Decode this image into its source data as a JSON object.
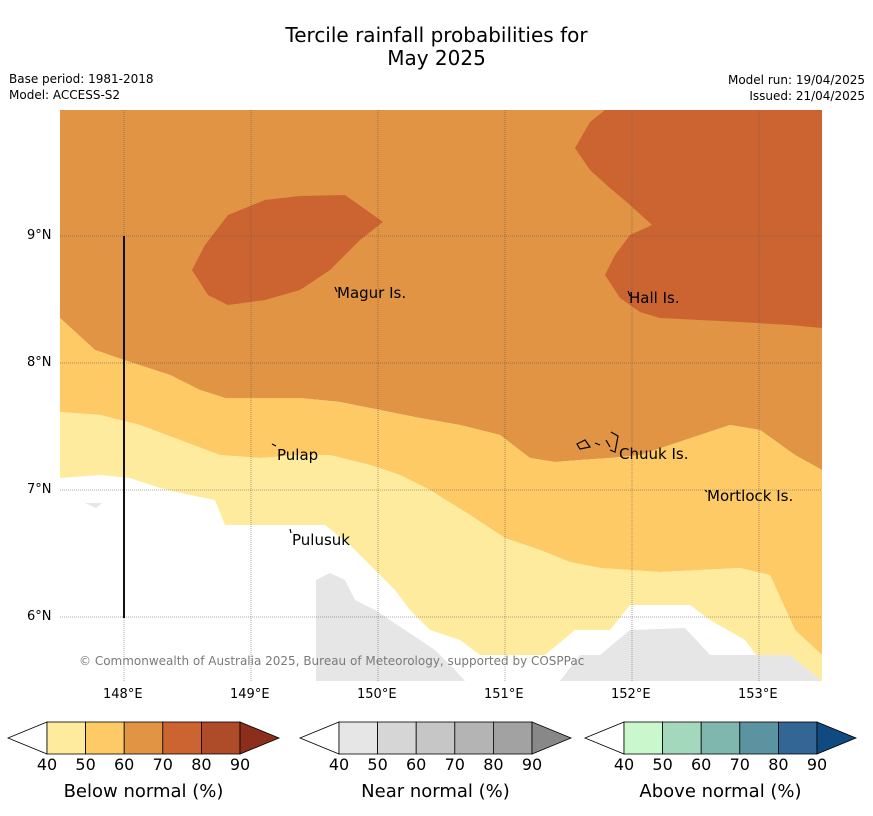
{
  "title": {
    "line1": "Tercile rainfall probabilities for",
    "line2": "May 2025"
  },
  "meta": {
    "base_period": "Base period: 1981-2018",
    "model": "Model: ACCESS-S2",
    "model_run": "Model run: 19/04/2025",
    "issued": "Issued: 21/04/2025"
  },
  "map": {
    "lat_ticks": [
      "9°N",
      "8°N",
      "7°N",
      "6°N"
    ],
    "lon_ticks": [
      "148°E",
      "149°E",
      "150°E",
      "151°E",
      "152°E",
      "153°E"
    ],
    "places": [
      {
        "name": "Magur Is."
      },
      {
        "name": "Hall Is."
      },
      {
        "name": "Pulap"
      },
      {
        "name": "Chuuk Is."
      },
      {
        "name": "Mortlock Is."
      },
      {
        "name": "Pulusuk"
      }
    ],
    "copyright": "© Commonwealth of Australia 2025, Bureau of Meteorology, supported by COSPPac"
  },
  "legends": [
    {
      "title": "Below normal (%)",
      "ticks": [
        "40",
        "50",
        "60",
        "70",
        "80",
        "90"
      ],
      "colors": [
        "#ffeb9e",
        "#fdca65",
        "#e09444",
        "#cb6431",
        "#ae4b28",
        "#8c2e1c"
      ]
    },
    {
      "title": "Near normal (%)",
      "ticks": [
        "40",
        "50",
        "60",
        "70",
        "80",
        "90"
      ],
      "colors": [
        "#e6e6e6",
        "#d6d6d6",
        "#c6c6c6",
        "#b4b4b4",
        "#a2a2a2",
        "#888888"
      ]
    },
    {
      "title": "Above normal (%)",
      "ticks": [
        "40",
        "50",
        "60",
        "70",
        "80",
        "90"
      ],
      "colors": [
        "#caf7cc",
        "#a4d8bd",
        "#7fb6ae",
        "#5b93a0",
        "#336595",
        "#104a80"
      ]
    }
  ]
}
